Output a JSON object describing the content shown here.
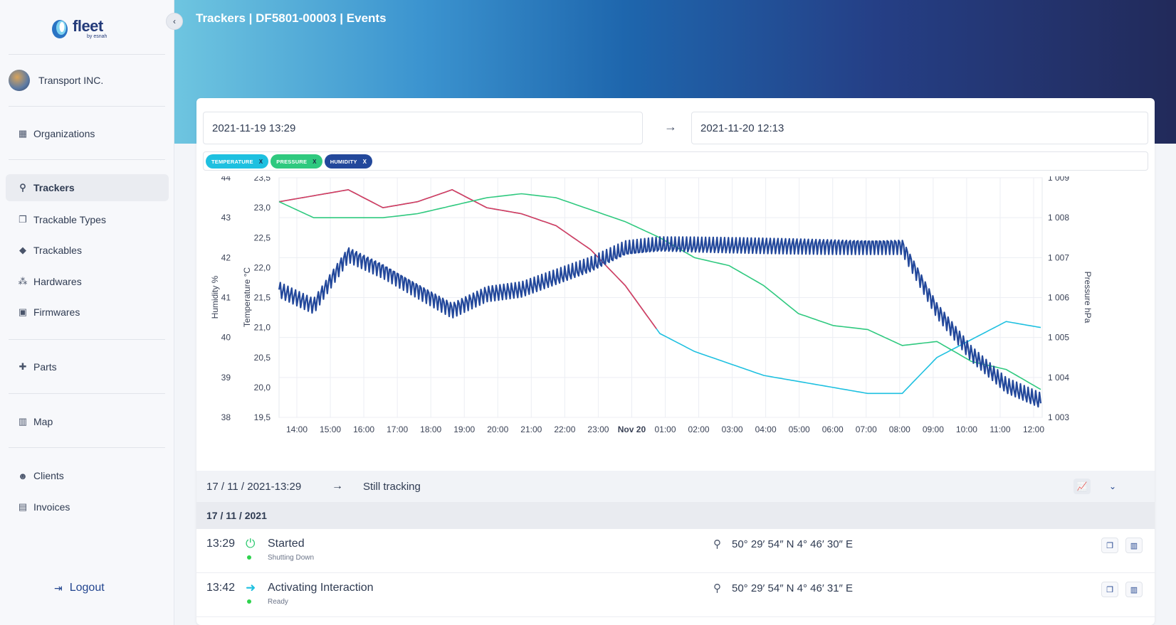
{
  "brand": {
    "logo_text": "fleet",
    "logo_sub": "by esnah"
  },
  "organization": {
    "name": "Transport INC."
  },
  "sidebar": {
    "items": [
      {
        "label": "Organizations",
        "icon": "building-icon"
      },
      {
        "label": "Trackers",
        "icon": "map-pin-icon",
        "active": true
      },
      {
        "label": "Trackable Types",
        "icon": "copy-icon"
      },
      {
        "label": "Trackables",
        "icon": "tag-icon"
      },
      {
        "label": "Hardwares",
        "icon": "network-icon"
      },
      {
        "label": "Firmwares",
        "icon": "chip-icon"
      },
      {
        "label": "Parts",
        "icon": "puzzle-icon"
      },
      {
        "label": "Map",
        "icon": "map-icon"
      },
      {
        "label": "Clients",
        "icon": "user-icon"
      },
      {
        "label": "Invoices",
        "icon": "grid-icon"
      }
    ],
    "logout_label": "Logout"
  },
  "header": {
    "title": "Trackers | DF5801-00003 | Events"
  },
  "filters": {
    "start_date": "2021-11-19 13:29",
    "end_date": "2021-11-20 12:13",
    "tags": [
      {
        "label": "TEMPERATURE",
        "remove": "X"
      },
      {
        "label": "PRESSURE",
        "remove": "X"
      },
      {
        "label": "HUMIDITY",
        "remove": "X"
      }
    ]
  },
  "colors": {
    "temperature": "#1ec0e0",
    "temperature_alt": "#dc3a5e",
    "pressure": "#2fc97f",
    "humidity": "#23489b"
  },
  "chart_data": {
    "type": "line",
    "x": [
      "14:00",
      "15:00",
      "16:00",
      "17:00",
      "18:00",
      "19:00",
      "20:00",
      "21:00",
      "22:00",
      "23:00",
      "Nov 20",
      "01:00",
      "02:00",
      "03:00",
      "04:00",
      "05:00",
      "06:00",
      "07:00",
      "08:00",
      "09:00",
      "10:00",
      "11:00",
      "12:00"
    ],
    "x_ticks": [
      "14:00",
      "15:00",
      "16:00",
      "17:00",
      "18:00",
      "19:00",
      "20:00",
      "21:00",
      "22:00",
      "23:00",
      "Nov 20",
      "01:00",
      "02:00",
      "03:00",
      "04:00",
      "05:00",
      "06:00",
      "07:00",
      "08:00",
      "09:00",
      "10:00",
      "11:00",
      "12:00"
    ],
    "axes": {
      "humidity": {
        "label": "Humidity %",
        "ticks": [
          "38",
          "39",
          "40",
          "41",
          "42",
          "43",
          "44"
        ],
        "range": [
          38,
          44
        ]
      },
      "temperature": {
        "label": "Temperature °C",
        "ticks": [
          "19,5",
          "20,0",
          "20,5",
          "21,0",
          "21,5",
          "22,0",
          "22,5",
          "23,0",
          "23,5"
        ],
        "range": [
          19.5,
          23.5
        ]
      },
      "pressure": {
        "label": "Pressure hPa",
        "ticks": [
          "1 003",
          "1 004",
          "1 005",
          "1 006",
          "1 007",
          "1 008",
          "1 009"
        ],
        "range": [
          1003,
          1009
        ]
      }
    },
    "series": [
      {
        "name": "TEMPERATURE",
        "axis": "temperature",
        "values": [
          23.1,
          23.2,
          23.3,
          23.0,
          23.1,
          23.3,
          23.0,
          22.9,
          22.7,
          22.3,
          21.7,
          20.9,
          20.6,
          20.4,
          20.2,
          20.1,
          20.0,
          19.9,
          19.9,
          20.5,
          20.8,
          21.1,
          21.0
        ]
      },
      {
        "name": "PRESSURE",
        "axis": "pressure",
        "values": [
          1008.4,
          1008.0,
          1008.0,
          1008.0,
          1008.1,
          1008.3,
          1008.5,
          1008.6,
          1008.5,
          1008.2,
          1007.9,
          1007.5,
          1007.0,
          1006.8,
          1006.3,
          1005.6,
          1005.3,
          1005.2,
          1004.8,
          1004.9,
          1004.4,
          1004.2,
          1003.7
        ]
      },
      {
        "name": "HUMIDITY",
        "axis": "humidity",
        "values": [
          41.2,
          40.8,
          42.1,
          41.7,
          41.2,
          40.7,
          41.1,
          41.2,
          41.5,
          41.8,
          42.2,
          42.3,
          42.3,
          42.3,
          42.3,
          42.3,
          42.3,
          42.3,
          42.3,
          40.7,
          39.6,
          38.8,
          38.4
        ]
      }
    ],
    "grid": true
  },
  "range": {
    "from": "17 / 11 / 2021-13:29",
    "to": "Still tracking"
  },
  "day_header": "17 / 11 / 2021",
  "events": [
    {
      "time": "13:29",
      "title": "Started",
      "status": "Shutting Down",
      "coords": "50° 29′ 54″ N  4° 46′ 30″ E",
      "icon": "power-icon"
    },
    {
      "time": "13:42",
      "title": "Activating Interaction",
      "status": "Ready",
      "coords": "50° 29′ 54″ N  4° 46′ 31″ E",
      "icon": "arrow-right-icon"
    }
  ]
}
